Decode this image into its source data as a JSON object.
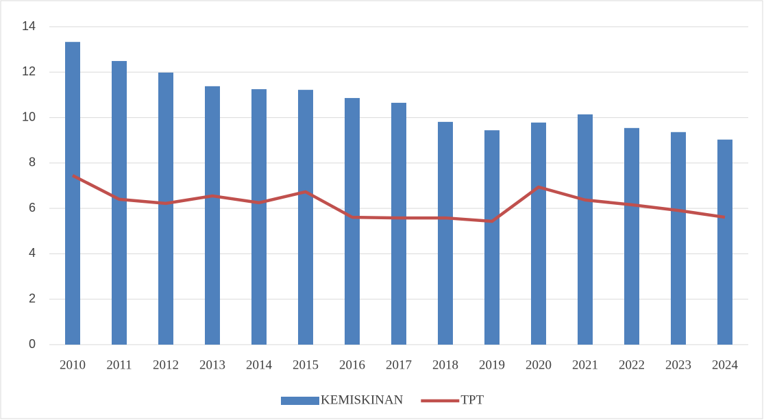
{
  "chart_data": {
    "type": "combo",
    "categories": [
      "2010",
      "2011",
      "2012",
      "2013",
      "2014",
      "2015",
      "2016",
      "2017",
      "2018",
      "2019",
      "2020",
      "2021",
      "2022",
      "2023",
      "2024"
    ],
    "series": [
      {
        "name": "KEMISKINAN",
        "type": "bar",
        "color": "#4f81bd",
        "values": [
          13.33,
          12.49,
          11.98,
          11.38,
          11.25,
          11.22,
          10.86,
          10.65,
          9.81,
          9.44,
          9.78,
          10.14,
          9.54,
          9.36,
          9.03
        ]
      },
      {
        "name": "TPT",
        "type": "line",
        "color": "#c0504d",
        "values": [
          7.45,
          6.4,
          6.22,
          6.55,
          6.25,
          6.73,
          5.61,
          5.58,
          5.58,
          5.43,
          6.94,
          6.37,
          6.16,
          5.91,
          5.61
        ]
      }
    ],
    "ylim": [
      0,
      14
    ],
    "yticks": [
      0,
      2,
      4,
      6,
      8,
      10,
      12,
      14
    ],
    "grid": true,
    "legend": "bottom"
  }
}
